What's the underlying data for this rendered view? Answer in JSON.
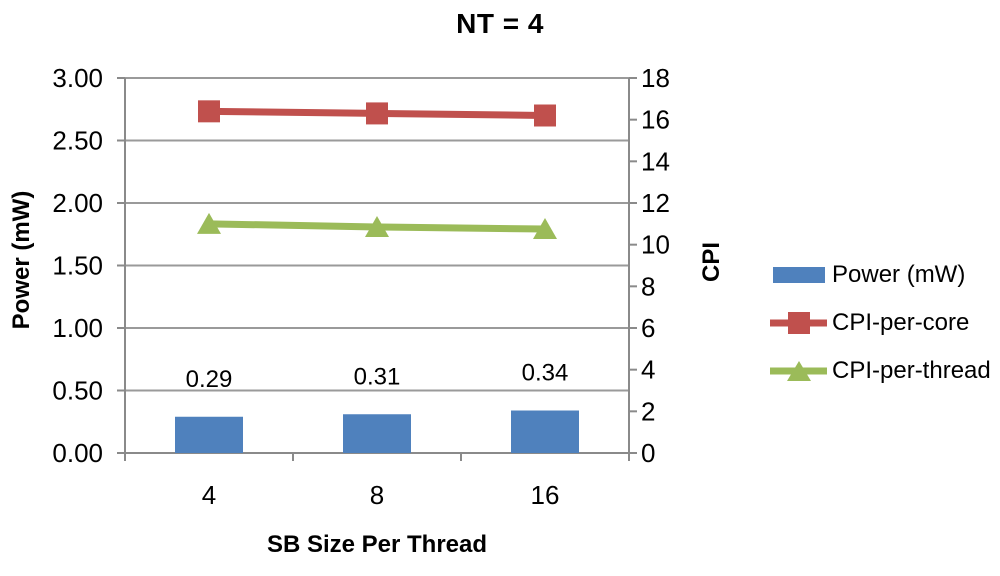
{
  "chart_data": {
    "type": "combo",
    "title": "NT = 4",
    "x_axis": {
      "title": "SB Size Per Thread",
      "categories": [
        "4",
        "8",
        "16"
      ]
    },
    "y_left": {
      "title": "Power (mW)",
      "min": 0,
      "max": 3,
      "tick_labels": [
        "0.00",
        "0.50",
        "1.00",
        "1.50",
        "2.00",
        "2.50",
        "3.00"
      ]
    },
    "y_right": {
      "title": "CPI",
      "min": 0,
      "max": 18,
      "tick_labels": [
        "0",
        "2",
        "4",
        "6",
        "8",
        "10",
        "12",
        "14",
        "16",
        "18"
      ]
    },
    "series": [
      {
        "name": "Power (mW)",
        "type": "bar",
        "axis": "left",
        "color": "#4f81bd",
        "values": [
          0.29,
          0.31,
          0.34
        ],
        "data_labels": [
          "0.29",
          "0.31",
          "0.34"
        ]
      },
      {
        "name": "CPI-per-core",
        "type": "line",
        "marker": "square",
        "axis": "right",
        "color": "#c0504d",
        "values": [
          16.4,
          16.3,
          16.2
        ]
      },
      {
        "name": "CPI-per-thread",
        "type": "line",
        "marker": "triangle",
        "axis": "right",
        "color": "#9bbb59",
        "values": [
          11.0,
          10.85,
          10.75
        ]
      }
    ],
    "legend_position": "right",
    "grid": true
  }
}
